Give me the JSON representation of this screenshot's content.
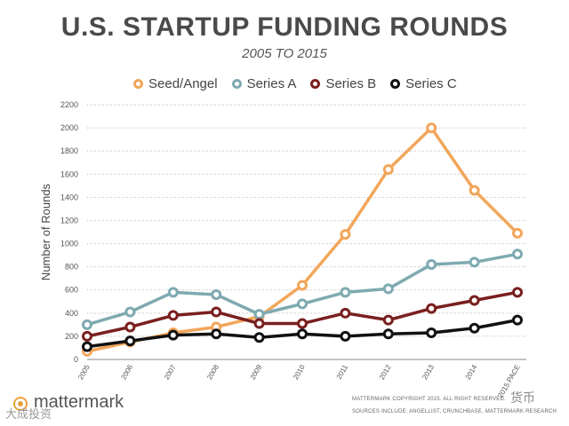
{
  "header": {
    "title": "U.S. STARTUP FUNDING ROUNDS",
    "subtitle": "2005 TO 2015"
  },
  "chart_data": {
    "type": "line",
    "title": "U.S. STARTUP FUNDING ROUNDS",
    "subtitle": "2005 TO 2015",
    "xlabel": "",
    "ylabel": "Number of Rounds",
    "ylim": [
      0,
      2200
    ],
    "yticks": [
      0,
      200,
      400,
      600,
      800,
      1000,
      1200,
      1400,
      1600,
      1800,
      2000,
      2200
    ],
    "grid": "horizontal dotted",
    "legend_position": "top",
    "categories": [
      "2005",
      "2006",
      "2007",
      "2008",
      "2009",
      "2010",
      "2011",
      "2012",
      "2013",
      "2014",
      "2015 PACE"
    ],
    "series": [
      {
        "name": "Seed/Angel",
        "color": "#f2a65a",
        "values": [
          70,
          150,
          230,
          280,
          370,
          640,
          1080,
          1640,
          2000,
          1460,
          1090
        ]
      },
      {
        "name": "Series A",
        "color": "#7eaab0",
        "values": [
          300,
          410,
          580,
          560,
          390,
          480,
          580,
          610,
          820,
          840,
          910
        ]
      },
      {
        "name": "Series B",
        "color": "#7a1f1f",
        "values": [
          200,
          280,
          380,
          410,
          310,
          310,
          400,
          340,
          440,
          510,
          580
        ]
      },
      {
        "name": "Series C",
        "color": "#111111",
        "values": [
          110,
          160,
          210,
          220,
          190,
          220,
          200,
          220,
          230,
          270,
          340
        ]
      }
    ]
  },
  "footer": {
    "brand": "mattermark",
    "copyright": "MATTERMARK COPYRIGHT 2015. ALL RIGHT RESERVED.",
    "sources": "SOURCES INCLUDE: ANGELLIST, CRUNCHBASE, MATTERMARK RESEARCH",
    "watermark_left": "大成投资",
    "watermark_right": "货币"
  }
}
